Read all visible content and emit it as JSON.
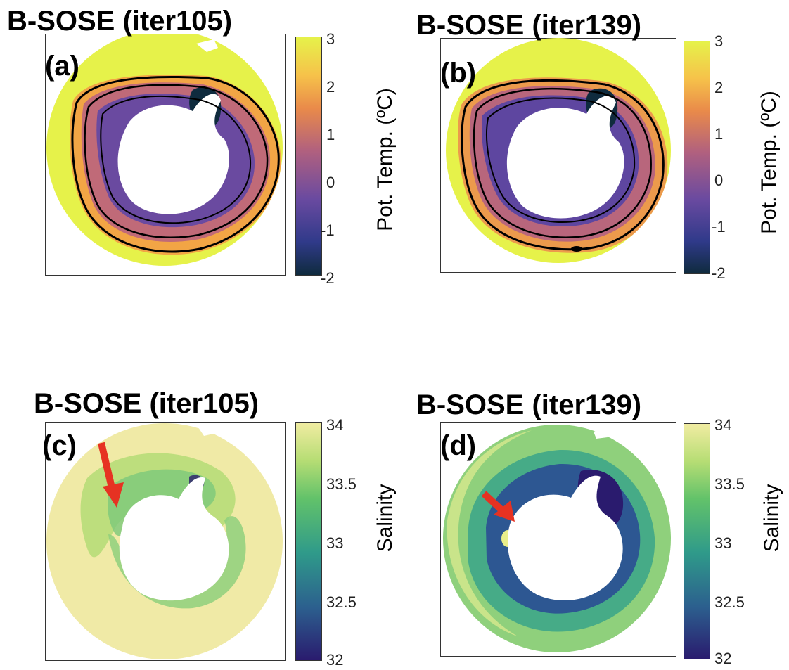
{
  "chart_data": [
    {
      "type": "heatmap",
      "title": "B-SOSE (iter105)",
      "panel_label": "(a)",
      "variable": "potential temperature",
      "colorbar": {
        "label": "Pot. Temp. (ºC)",
        "ticks": [
          "3",
          "2",
          "1",
          "0",
          "-1",
          "-2"
        ],
        "range": [
          -2,
          3
        ],
        "colors": [
          "#0f2b3e",
          "#303a8a",
          "#6a4aa0",
          "#b0607f",
          "#e98a4a",
          "#f6c24a",
          "#e6f24a"
        ]
      },
      "contours": true,
      "grid": false
    },
    {
      "type": "heatmap",
      "title": "B-SOSE (iter139)",
      "panel_label": "(b)",
      "variable": "potential temperature",
      "colorbar": {
        "label": "Pot. Temp. (ºC)",
        "ticks": [
          "3",
          "2",
          "1",
          "0",
          "-1",
          "-2"
        ],
        "range": [
          -2,
          3
        ],
        "colors": [
          "#0f2b3e",
          "#303a8a",
          "#6a4aa0",
          "#b0607f",
          "#e98a4a",
          "#f6c24a",
          "#e6f24a"
        ]
      },
      "contours": true,
      "grid": false
    },
    {
      "type": "heatmap",
      "title": "B-SOSE (iter105)",
      "panel_label": "(c)",
      "variable": "salinity",
      "colorbar": {
        "label": "Salinity",
        "ticks": [
          "34",
          "33.5",
          "33",
          "32.5",
          "32"
        ],
        "range": [
          32,
          34
        ],
        "colors": [
          "#2a1b6e",
          "#2c5f8e",
          "#2f9a8a",
          "#62c26a",
          "#b6dd74",
          "#f1eca2"
        ]
      },
      "annotation": "red arrow",
      "grid": false
    },
    {
      "type": "heatmap",
      "title": "B-SOSE (iter139)",
      "panel_label": "(d)",
      "variable": "salinity",
      "colorbar": {
        "label": "Salinity",
        "ticks": [
          "34",
          "33.5",
          "33",
          "32.5",
          "32"
        ],
        "range": [
          32,
          34
        ],
        "colors": [
          "#2a1b6e",
          "#2c5f8e",
          "#2f9a8a",
          "#62c26a",
          "#b6dd74",
          "#f1eca2"
        ]
      },
      "annotation": "red arrow",
      "grid": false
    }
  ]
}
